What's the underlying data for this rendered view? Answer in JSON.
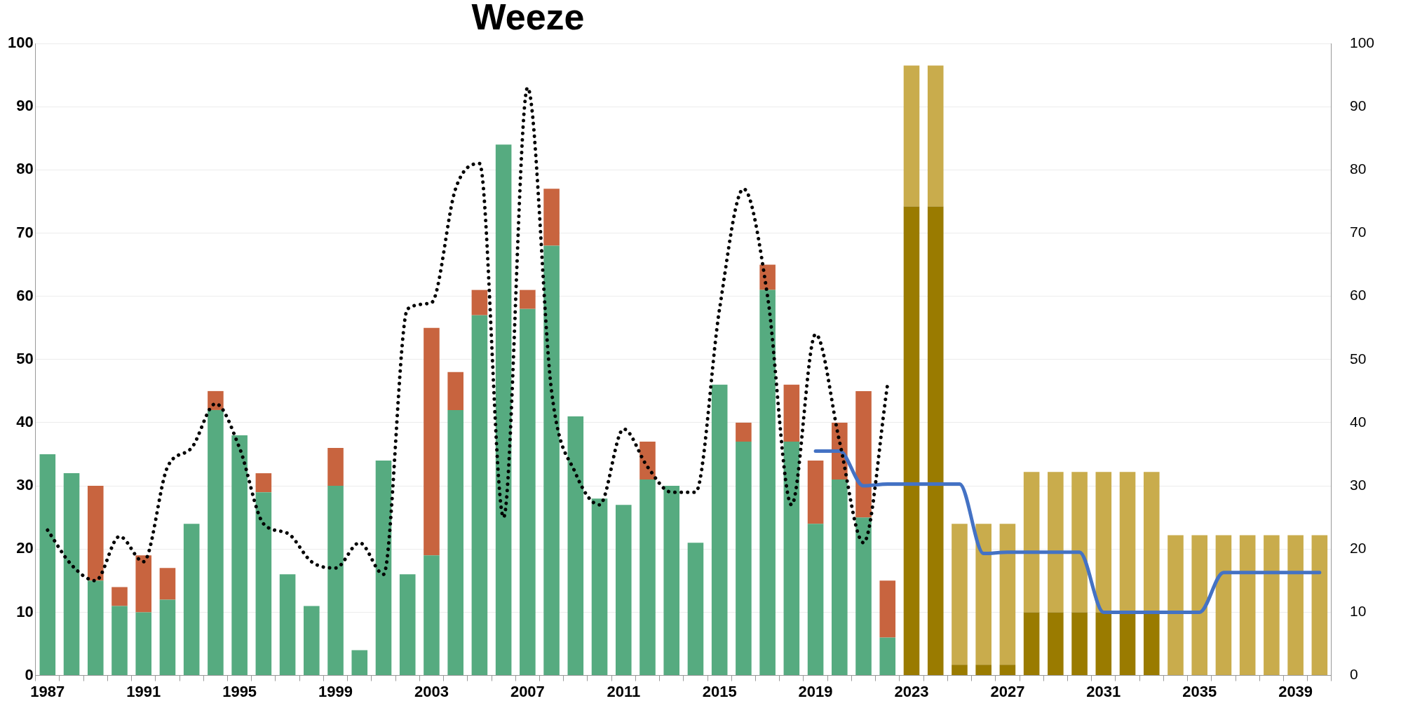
{
  "chart_data": {
    "type": "bar",
    "title": "Weeze",
    "stacked": true,
    "categories": [
      "1987",
      null,
      null,
      null,
      "1991",
      null,
      null,
      null,
      "1995",
      null,
      null,
      null,
      "1999",
      null,
      null,
      null,
      "2003",
      null,
      null,
      null,
      "2007",
      null,
      null,
      null,
      "2011",
      null,
      null,
      null,
      "2015",
      null,
      null,
      null,
      "2019",
      null,
      null,
      null,
      "2023",
      null,
      null,
      null,
      "2027",
      null,
      null,
      null,
      "2031",
      null,
      null,
      null,
      "2035",
      null,
      null,
      null,
      "2039",
      null
    ],
    "series": [
      {
        "color": "#56ab80",
        "values": [
          35,
          32,
          15,
          11,
          10,
          12,
          24,
          42,
          38,
          29,
          16,
          11,
          30,
          4,
          34,
          16,
          19,
          42,
          57,
          84,
          58,
          68,
          41,
          28,
          27,
          31,
          30,
          21,
          46,
          37,
          61,
          37,
          24,
          31,
          25,
          6,
          null,
          null,
          null,
          null,
          null,
          null,
          null,
          null,
          null,
          null,
          null,
          null,
          null,
          null,
          null,
          null,
          null,
          null
        ]
      },
      {
        "color": "#c8643f",
        "values": [
          null,
          null,
          15,
          3,
          9,
          5,
          null,
          3,
          null,
          3,
          null,
          null,
          6,
          null,
          null,
          null,
          36,
          6,
          4,
          null,
          3,
          9,
          null,
          null,
          null,
          6,
          null,
          null,
          null,
          3,
          4,
          9,
          10,
          9,
          20,
          9,
          null,
          null,
          null,
          null,
          null,
          null,
          null,
          null,
          null,
          null,
          null,
          null,
          null,
          null,
          null,
          null,
          null,
          null
        ]
      },
      {
        "color": "#9a7b00",
        "values": [
          null,
          null,
          null,
          null,
          null,
          null,
          null,
          null,
          null,
          null,
          null,
          null,
          null,
          null,
          null,
          null,
          null,
          null,
          null,
          null,
          null,
          null,
          null,
          null,
          null,
          null,
          null,
          null,
          null,
          null,
          null,
          null,
          null,
          null,
          null,
          null,
          74.2,
          74.2,
          1.7,
          1.7,
          1.7,
          10,
          10,
          10,
          10,
          10,
          10,
          null,
          null,
          null,
          null,
          null,
          null,
          null
        ]
      },
      {
        "color": "#c9ac4c",
        "values": [
          null,
          null,
          null,
          null,
          null,
          null,
          null,
          null,
          null,
          null,
          null,
          null,
          null,
          null,
          null,
          null,
          null,
          null,
          null,
          null,
          null,
          null,
          null,
          null,
          null,
          null,
          null,
          null,
          null,
          null,
          null,
          null,
          null,
          null,
          null,
          null,
          22.3,
          22.3,
          22.3,
          22.3,
          22.3,
          22.2,
          22.2,
          22.2,
          22.2,
          22.2,
          22.2,
          22.2,
          22.2,
          22.2,
          22.2,
          22.2,
          22.2,
          22.2
        ]
      },
      {
        "type": "line",
        "color": "#000000",
        "line_style": "dotted",
        "values": [
          23,
          17.5,
          15,
          22,
          18,
          33,
          36,
          43,
          36,
          24,
          22.5,
          18,
          17,
          21,
          16,
          58,
          59,
          77,
          81,
          25,
          93,
          45,
          32,
          27,
          39,
          33,
          29,
          29,
          58,
          77,
          60,
          27,
          54,
          37,
          21,
          46,
          null,
          null,
          null,
          null,
          null,
          null,
          null,
          null,
          null,
          null,
          null,
          null,
          null,
          null,
          null,
          null,
          null,
          null
        ]
      },
      {
        "type": "line",
        "color": "#4472c4",
        "line_style": "solid",
        "values": [
          null,
          null,
          null,
          null,
          null,
          null,
          null,
          null,
          null,
          null,
          null,
          null,
          null,
          null,
          null,
          null,
          null,
          null,
          null,
          null,
          null,
          null,
          null,
          null,
          null,
          null,
          null,
          null,
          null,
          null,
          null,
          null,
          35.5,
          35.5,
          30,
          30.3,
          30.3,
          30.3,
          30.3,
          19.3,
          19.5,
          19.5,
          19.5,
          19.5,
          10,
          10,
          10,
          10,
          10,
          16.3,
          16.3,
          16.3,
          16.3,
          16.3
        ]
      }
    ],
    "ylim": [
      0,
      100
    ],
    "yticks": [
      0,
      10,
      20,
      30,
      40,
      50,
      60,
      70,
      80,
      90,
      100
    ],
    "y2lim": [
      0,
      100
    ],
    "y2ticks": [
      0,
      10,
      20,
      30,
      40,
      50,
      60,
      70,
      80,
      90,
      100
    ],
    "grid": "y",
    "legend": false,
    "marker": "none"
  }
}
